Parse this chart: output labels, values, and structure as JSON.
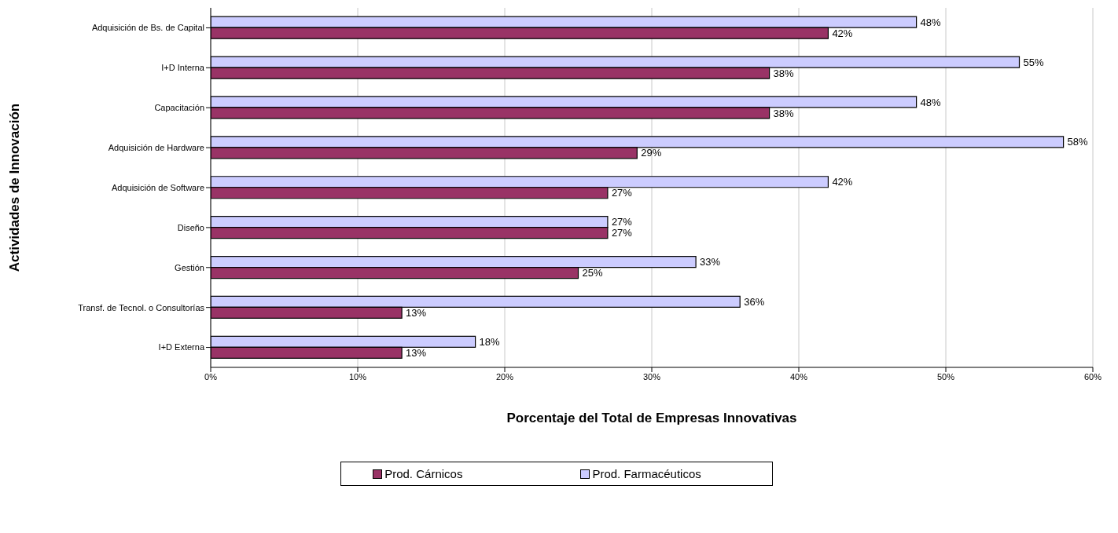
{
  "chart_data": {
    "type": "bar",
    "orientation": "horizontal",
    "xlabel": "Porcentaje del Total de Empresas Innovativas",
    "ylabel": "Actividades de Innovación",
    "categories": [
      "Adquisición de Bs. de Capital",
      "I+D Interna",
      "Capacitación",
      "Adquisición de Hardware",
      "Adquisición de Software",
      "Diseño",
      "Gestión",
      "Transf. de Tecnol. o Consultorías",
      "I+D Externa"
    ],
    "series": [
      {
        "name": "Prod. Cárnicos",
        "color": "#993366",
        "values": [
          42,
          38,
          38,
          29,
          27,
          27,
          25,
          13,
          13
        ],
        "value_labels": [
          "42%",
          "38%",
          "38%",
          "29%",
          "27%",
          "27%",
          "25%",
          "13%",
          "13%"
        ]
      },
      {
        "name": "Prod. Farmacéuticos",
        "color": "#ccccff",
        "values": [
          48,
          55,
          48,
          58,
          42,
          27,
          33,
          36,
          18
        ],
        "value_labels": [
          "48%",
          "55%",
          "48%",
          "58%",
          "42%",
          "27%",
          "33%",
          "36%",
          "18%"
        ]
      }
    ],
    "xlim": [
      0,
      60
    ],
    "xticks": [
      {
        "value": 0,
        "label": "0%"
      },
      {
        "value": 10,
        "label": "10%"
      },
      {
        "value": 20,
        "label": "20%"
      },
      {
        "value": 30,
        "label": "30%"
      },
      {
        "value": 40,
        "label": "40%"
      },
      {
        "value": 50,
        "label": "50%"
      },
      {
        "value": 60,
        "label": "60%"
      }
    ],
    "grid": "x",
    "legend": "bottom"
  }
}
